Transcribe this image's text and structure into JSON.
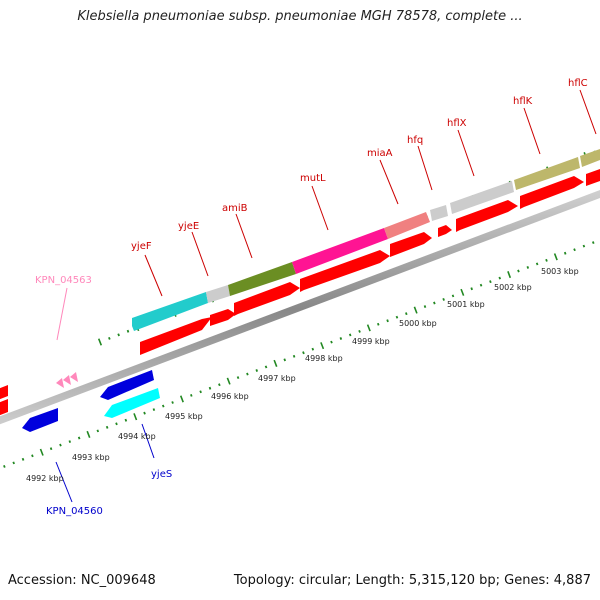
{
  "title": "Klebsiella pneumoniae subsp. pneumoniae MGH 78578, complete ...",
  "footer": {
    "accession": "Accession: NC_009648",
    "summary": "Topology: circular; Length: 5,315,120 bp; Genes: 4,887"
  },
  "scale_labels": [
    "4992 kbp",
    "4993 kbp",
    "4994 kbp",
    "4995 kbp",
    "4996 kbp",
    "4997 kbp",
    "4998 kbp",
    "4999 kbp",
    "5000 kbp",
    "5001 kbp",
    "5002 kbp",
    "5003 kbp"
  ],
  "gene_labels": [
    {
      "name": "KPN_04560",
      "color": "#0000cc"
    },
    {
      "name": "yjeS",
      "color": "#0000cc"
    },
    {
      "name": "KPN_04563",
      "color": "#ff88bb"
    },
    {
      "name": "yjeF",
      "color": "#cc0000"
    },
    {
      "name": "yjeE",
      "color": "#cc0000"
    },
    {
      "name": "amiB",
      "color": "#cc0000"
    },
    {
      "name": "mutL",
      "color": "#cc0000"
    },
    {
      "name": "miaA",
      "color": "#cc0000"
    },
    {
      "name": "hfq",
      "color": "#cc0000"
    },
    {
      "name": "hflX",
      "color": "#cc0000"
    },
    {
      "name": "hflK",
      "color": "#cc0000"
    },
    {
      "name": "hflC",
      "color": "#cc0000"
    }
  ],
  "colors": {
    "forward_gene": "#ff0000",
    "reverse_gene": "#0000dd",
    "backbone": "#999999",
    "tick": "#228822",
    "yjeS": "#00ffff",
    "yjeF": "#22cccc",
    "yjeE": "#cccccc",
    "amiB": "#6b8e23",
    "mutL": "#ff1493",
    "miaA": "#f08080",
    "hfq": "#cccccc",
    "hflX": "#cccccc",
    "hflK": "#bdb76b"
  }
}
